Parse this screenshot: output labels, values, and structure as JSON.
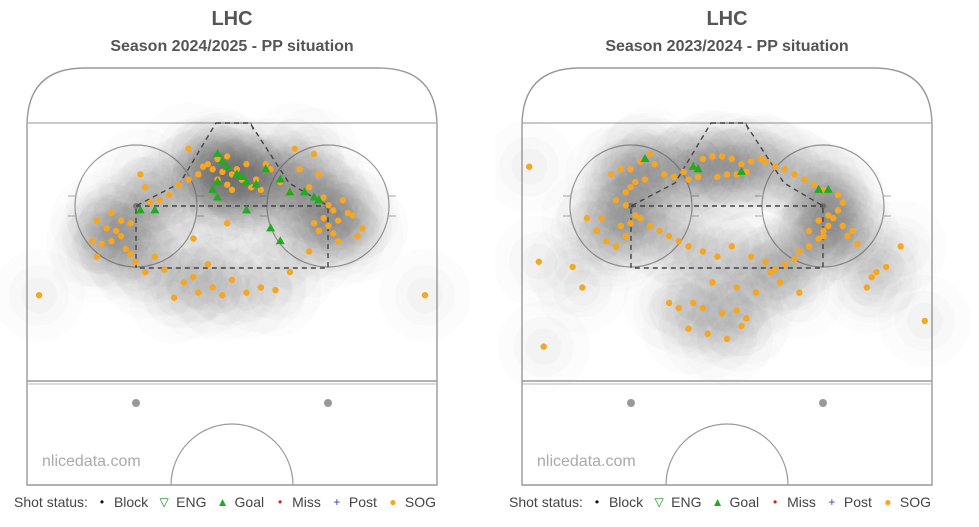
{
  "watermark": "nlicedata.com",
  "legend": {
    "title": "Shot status:",
    "items": [
      {
        "label": "Block",
        "symbol": "dot",
        "color": "#111111"
      },
      {
        "label": "ENG",
        "symbol": "triangle-down-open",
        "color": "#1a8c1a"
      },
      {
        "label": "Goal",
        "symbol": "triangle-up",
        "color": "#22aa22"
      },
      {
        "label": "Miss",
        "symbol": "dot",
        "color": "#cc2222"
      },
      {
        "label": "Post",
        "symbol": "plus",
        "color": "#3344cc"
      },
      {
        "label": "SOG",
        "symbol": "circle",
        "color": "#f5a623"
      }
    ]
  },
  "chart_data": [
    {
      "type": "scatter",
      "title": "LHC",
      "subtitle": "Season 2024/2025  -  PP situation",
      "xlim": [
        -42.5,
        42.5
      ],
      "ylim": [
        0,
        100
      ],
      "series": [
        {
          "name": "SOG",
          "color": "#f5a623",
          "points": [
            [
              -40,
              33
            ],
            [
              40,
              33
            ],
            [
              -29,
              54
            ],
            [
              -27,
              53
            ],
            [
              -25,
              54
            ],
            [
              -23,
              56
            ],
            [
              -24,
              58
            ],
            [
              -28,
              62
            ],
            [
              -25,
              65
            ],
            [
              -23,
              62
            ],
            [
              -21,
              61
            ],
            [
              -26,
              59
            ],
            [
              -22,
              51
            ],
            [
              -28,
              48
            ],
            [
              -21,
              49
            ],
            [
              -16,
              48
            ],
            [
              -20,
              46
            ],
            [
              -18,
              42
            ],
            [
              -14,
              43
            ],
            [
              -10,
              38
            ],
            [
              -8,
              40
            ],
            [
              -12,
              32
            ],
            [
              -7,
              34
            ],
            [
              -4,
              36
            ],
            [
              -2,
              33
            ],
            [
              0,
              39
            ],
            [
              3,
              34
            ],
            [
              6,
              36
            ],
            [
              9,
              35
            ],
            [
              12,
              42
            ],
            [
              16,
              50
            ],
            [
              -19,
              80
            ],
            [
              -18,
              75
            ],
            [
              -17,
              69
            ],
            [
              -15,
              70
            ],
            [
              -13,
              72
            ],
            [
              -11,
              76
            ],
            [
              -9,
              78
            ],
            [
              -7,
              80
            ],
            [
              -5,
              84
            ],
            [
              -3,
              86
            ],
            [
              -1,
              87
            ],
            [
              1,
              82
            ],
            [
              3,
              84
            ],
            [
              5,
              78
            ],
            [
              6,
              74
            ],
            [
              4,
              75
            ],
            [
              2,
              78
            ],
            [
              0,
              80
            ],
            [
              -2,
              81
            ],
            [
              -4,
              82
            ],
            [
              -6,
              83
            ],
            [
              -3,
              78
            ],
            [
              -1,
              76
            ],
            [
              0,
              74
            ],
            [
              7,
              84
            ],
            [
              8,
              82
            ],
            [
              10,
              77
            ],
            [
              12,
              73
            ],
            [
              14,
              82
            ],
            [
              17,
              88
            ],
            [
              18,
              80
            ],
            [
              16,
              75
            ],
            [
              19,
              71
            ],
            [
              20,
              68
            ],
            [
              21,
              66
            ],
            [
              19,
              63
            ],
            [
              17,
              61
            ],
            [
              18,
              58
            ],
            [
              20,
              60
            ],
            [
              21,
              57
            ],
            [
              22,
              62
            ],
            [
              24,
              65
            ],
            [
              23,
              70
            ],
            [
              25,
              64
            ],
            [
              27,
              59
            ],
            [
              26,
              56
            ],
            [
              22,
              54
            ],
            [
              13,
              90
            ],
            [
              -9,
              90
            ],
            [
              -1,
              61
            ],
            [
              -8,
              55
            ],
            [
              -5,
              45
            ]
          ]
        },
        {
          "name": "Goal",
          "color": "#22aa22",
          "points": [
            [
              -3,
              88
            ],
            [
              -2,
              85
            ],
            [
              -1,
              83
            ],
            [
              1,
              80
            ],
            [
              2,
              79
            ],
            [
              3,
              77
            ],
            [
              5,
              76
            ],
            [
              -3,
              77
            ],
            [
              -4,
              74
            ],
            [
              7,
              82
            ],
            [
              10,
              78
            ],
            [
              12,
              73
            ],
            [
              15,
              73
            ],
            [
              17,
              71
            ],
            [
              18,
              70
            ],
            [
              -19,
              66
            ],
            [
              -16,
              66
            ],
            [
              -3,
              71
            ],
            [
              3,
              66
            ],
            [
              8,
              59
            ],
            [
              10,
              54
            ]
          ]
        }
      ]
    },
    {
      "type": "scatter",
      "title": "LHC",
      "subtitle": "Season 2023/2024  -  PP situation",
      "xlim": [
        -42.5,
        42.5
      ],
      "ylim": [
        0,
        100
      ],
      "series": [
        {
          "name": "SOG",
          "color": "#f5a623",
          "points": [
            [
              -41,
              83
            ],
            [
              -32,
              44
            ],
            [
              -29,
              63
            ],
            [
              -26,
              63
            ],
            [
              -27,
              58
            ],
            [
              -25,
              54
            ],
            [
              -23,
              52
            ],
            [
              -21,
              56
            ],
            [
              -22,
              60
            ],
            [
              -20,
              61
            ],
            [
              -19,
              64
            ],
            [
              -18,
              63
            ],
            [
              -21,
              68
            ],
            [
              -23,
              70
            ],
            [
              -21,
              73
            ],
            [
              -20,
              75
            ],
            [
              -19,
              77
            ],
            [
              -17,
              78
            ],
            [
              -24,
              80
            ],
            [
              -22,
              82
            ],
            [
              -20,
              82
            ],
            [
              -18,
              85
            ],
            [
              -16,
              88
            ],
            [
              -15,
              84
            ],
            [
              -13,
              80
            ],
            [
              -11,
              79
            ],
            [
              -9,
              81
            ],
            [
              -7,
              83
            ],
            [
              -5,
              86
            ],
            [
              -3,
              87
            ],
            [
              -1,
              87
            ],
            [
              1,
              86
            ],
            [
              3,
              84
            ],
            [
              5,
              85
            ],
            [
              7,
              86
            ],
            [
              4,
              81
            ],
            [
              2,
              80
            ],
            [
              0,
              80
            ],
            [
              -2,
              79
            ],
            [
              -6,
              79
            ],
            [
              -8,
              78
            ],
            [
              -16,
              60
            ],
            [
              -14,
              58
            ],
            [
              -12,
              56
            ],
            [
              -10,
              54
            ],
            [
              -8,
              52
            ],
            [
              -5,
              50
            ],
            [
              -2,
              48
            ],
            [
              1,
              52
            ],
            [
              5,
              48
            ],
            [
              8,
              46
            ],
            [
              10,
              43
            ],
            [
              12,
              45
            ],
            [
              14,
              47
            ],
            [
              15,
              50
            ],
            [
              17,
              52
            ],
            [
              19,
              55
            ],
            [
              20,
              58
            ],
            [
              21,
              60
            ],
            [
              22,
              63
            ],
            [
              23,
              66
            ],
            [
              24,
              69
            ],
            [
              23,
              72
            ],
            [
              20,
              74
            ],
            [
              18,
              76
            ],
            [
              16,
              78
            ],
            [
              14,
              80
            ],
            [
              12,
              82
            ],
            [
              10,
              83
            ],
            [
              8,
              85
            ],
            [
              19,
              62
            ],
            [
              21,
              64
            ],
            [
              24,
              60
            ],
            [
              26,
              58
            ],
            [
              25,
              56
            ],
            [
              27,
              53
            ],
            [
              20,
              56
            ],
            [
              17,
              58
            ],
            [
              -3,
              38
            ],
            [
              2,
              36
            ],
            [
              6,
              34
            ],
            [
              9,
              42
            ],
            [
              11,
              38
            ],
            [
              15,
              34
            ],
            [
              -12,
              30
            ],
            [
              -10,
              28
            ],
            [
              -7,
              30
            ],
            [
              -5,
              28
            ],
            [
              -1,
              26
            ],
            [
              2,
              27
            ],
            [
              4,
              24
            ],
            [
              -8,
              20
            ],
            [
              -4,
              18
            ],
            [
              0,
              16
            ],
            [
              3,
              21
            ],
            [
              -30,
              36
            ],
            [
              29,
              36
            ],
            [
              30,
              40
            ],
            [
              31,
              42
            ],
            [
              33,
              44
            ],
            [
              36,
              52
            ],
            [
              41,
              23
            ],
            [
              -38,
              13
            ],
            [
              -39,
              46
            ]
          ]
        },
        {
          "name": "Goal",
          "color": "#22aa22",
          "points": [
            [
              -17,
              86
            ],
            [
              -7,
              83
            ],
            [
              -6,
              82
            ],
            [
              3,
              81
            ],
            [
              19,
              74
            ],
            [
              21,
              74
            ]
          ]
        }
      ]
    }
  ]
}
